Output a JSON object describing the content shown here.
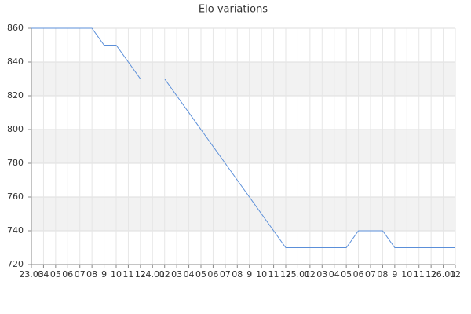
{
  "chart_data": {
    "type": "line",
    "title": "Elo variations",
    "categories": [
      "23.03",
      "04",
      "05",
      "06",
      "07",
      "08",
      "9",
      "10",
      "11",
      "12",
      "24.01",
      "02",
      "03",
      "04",
      "05",
      "06",
      "07",
      "08",
      "9",
      "10",
      "11",
      "12",
      "25.01",
      "02",
      "03",
      "04",
      "05",
      "06",
      "07",
      "08",
      "9",
      "10",
      "11",
      "12",
      "26.01",
      "02"
    ],
    "series": [
      {
        "name": "Elo",
        "color": "#5b8fd9",
        "values": [
          860,
          860,
          860,
          860,
          860,
          860,
          850,
          850,
          840,
          830,
          830,
          830,
          820,
          810,
          800,
          790,
          780,
          770,
          760,
          750,
          740,
          730,
          730,
          730,
          730,
          730,
          730,
          740,
          740,
          740,
          730,
          730,
          730,
          730,
          730,
          730
        ]
      }
    ],
    "ylim": [
      720,
      860
    ],
    "yticks": [
      720,
      740,
      760,
      780,
      800,
      820,
      840,
      860
    ],
    "grid": true
  }
}
